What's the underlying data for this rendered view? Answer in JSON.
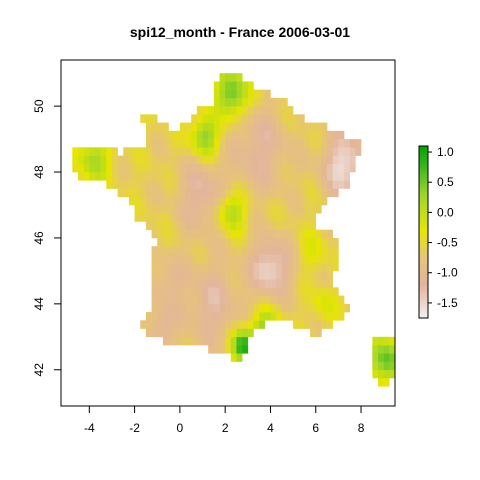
{
  "map": {
    "title": "spi12_month - France 2006-03-01",
    "x_axis": {
      "range": [
        -5.25,
        9.5
      ],
      "ticks": [
        -4,
        -2,
        0,
        2,
        4,
        6,
        8
      ],
      "tick_labels": [
        "-4",
        "-2",
        "0",
        "2",
        "4",
        "6",
        "8"
      ]
    },
    "y_axis": {
      "range": [
        40.9,
        51.4
      ],
      "ticks": [
        42,
        44,
        46,
        48,
        50
      ],
      "tick_labels": [
        "42",
        "44",
        "46",
        "48",
        "50"
      ]
    },
    "legend": {
      "type": "continuous colorbar",
      "range": [
        -1.75,
        1.1
      ],
      "ticks": [
        1.0,
        0.5,
        0.0,
        -0.5,
        -1.0,
        -1.5
      ],
      "tick_labels": [
        "1.0",
        "0.5",
        "0.0",
        "-0.5",
        "-1.0",
        "-1.5"
      ],
      "color_stops": [
        {
          "value": -1.75,
          "color": "#f2f2f2"
        },
        {
          "value": -1.2,
          "color": "#e3b59c"
        },
        {
          "value": -0.75,
          "color": "#e6c37a"
        },
        {
          "value": -0.3,
          "color": "#e6e600"
        },
        {
          "value": 0.3,
          "color": "#9ed62a"
        },
        {
          "value": 0.75,
          "color": "#3cb81b"
        },
        {
          "value": 1.1,
          "color": "#00a600"
        }
      ]
    },
    "cell_size_deg": 0.25,
    "region": "France (raster grid, approx. 0.25 deg cells)",
    "anomaly_zones": [
      {
        "lon": 7.3,
        "lat": 48.2,
        "r": 1.0,
        "value": -1.6
      },
      {
        "lon": 4.0,
        "lat": 45.1,
        "r": 0.9,
        "value": -1.55
      },
      {
        "lon": 1.0,
        "lat": 47.3,
        "r": 1.1,
        "value": -1.25
      },
      {
        "lon": 1.4,
        "lat": 44.0,
        "r": 1.3,
        "value": -1.2
      },
      {
        "lon": -0.8,
        "lat": 43.3,
        "r": 0.6,
        "value": -1.25
      },
      {
        "lon": -0.5,
        "lat": 44.6,
        "r": 0.8,
        "value": -1.1
      },
      {
        "lon": 3.5,
        "lat": 48.7,
        "r": 1.3,
        "value": -1.2
      },
      {
        "lon": 3.8,
        "lat": 43.0,
        "r": 0.7,
        "value": 0.6
      },
      {
        "lon": 2.8,
        "lat": 42.7,
        "r": 0.5,
        "value": 1.0
      },
      {
        "lon": 2.3,
        "lat": 50.4,
        "r": 0.7,
        "value": 0.6
      },
      {
        "lon": 1.1,
        "lat": 49.1,
        "r": 0.6,
        "value": 0.4
      },
      {
        "lon": -3.8,
        "lat": 48.4,
        "r": 0.7,
        "value": 0.2
      },
      {
        "lon": 2.3,
        "lat": 46.8,
        "r": 0.6,
        "value": 0.15
      },
      {
        "lon": 5.9,
        "lat": 45.6,
        "r": 0.6,
        "value": -0.3
      },
      {
        "lon": 6.4,
        "lat": 44.0,
        "r": 0.5,
        "value": -0.2
      },
      {
        "lon": 9.1,
        "lat": 42.3,
        "r": 0.7,
        "value": 0.6
      }
    ]
  }
}
